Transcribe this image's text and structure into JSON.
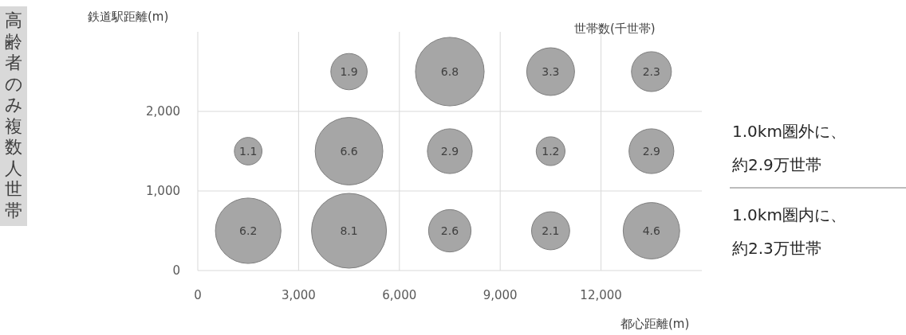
{
  "chart_data": {
    "type": "bubble",
    "title": "高齢者のみ複数人世帯",
    "xlabel": "都心距離(m)",
    "ylabel": "鉄道駅距離(m)",
    "annotations": [
      "世帯数(千世帯)",
      "1.0km圏外に、約2.9万世帯",
      "1.0km圏内に、約2.3万世帯",
      {
        "text": "1.9",
        "x": 4500,
        "y": 2500
      },
      {
        "text": "6.8",
        "x": 7500,
        "y": 2500
      },
      {
        "text": "3.3",
        "x": 10500,
        "y": 2500
      },
      {
        "text": "2.3",
        "x": 13500,
        "y": 2500
      },
      {
        "text": "1.1",
        "x": 1500,
        "y": 1500
      },
      {
        "text": "6.6",
        "x": 4500,
        "y": 1500
      },
      {
        "text": "2.9",
        "x": 7500,
        "y": 1500
      },
      {
        "text": "1.2",
        "x": 10500,
        "y": 1500
      },
      {
        "text": "2.9",
        "x": 13500,
        "y": 1500
      },
      {
        "text": "6.2",
        "x": 1500,
        "y": 500
      },
      {
        "text": "8.1",
        "x": 4500,
        "y": 500
      },
      {
        "text": "2.6",
        "x": 7500,
        "y": 500
      },
      {
        "text": "2.1",
        "x": 10500,
        "y": 500
      },
      {
        "text": "4.6",
        "x": 13500,
        "y": 500
      }
    ],
    "xlim": [
      0,
      15000
    ],
    "xticks": [
      {
        "value": 0,
        "label": "0"
      },
      {
        "value": 3000,
        "label": "3,000"
      },
      {
        "value": 6000,
        "label": "6,000"
      },
      {
        "value": 9000,
        "label": "9,000"
      },
      {
        "value": 12000,
        "label": "12,000"
      }
    ],
    "ylim": [
      0,
      3000
    ],
    "yticks": [
      {
        "value": 0,
        "label": "0"
      },
      {
        "value": 1000,
        "label": "1,000"
      },
      {
        "value": 2000,
        "label": "2,000"
      }
    ],
    "grid": true,
    "series": [
      {
        "color": "#a6a6a6",
        "x": [
          4500,
          7500,
          10500,
          13500,
          1500,
          4500,
          7500,
          10500,
          13500,
          1500,
          4500,
          7500,
          10500,
          13500
        ],
        "values": [
          2500,
          2500,
          2500,
          2500,
          1500,
          1500,
          1500,
          1500,
          1500,
          500,
          500,
          500,
          500,
          500
        ],
        "sizes": [
          0.235,
          0.84,
          0.407,
          0.284,
          0.136,
          0.815,
          0.358,
          0.148,
          0.358,
          0.765,
          1,
          0.321,
          0.259,
          0.568
        ]
      }
    ]
  }
}
